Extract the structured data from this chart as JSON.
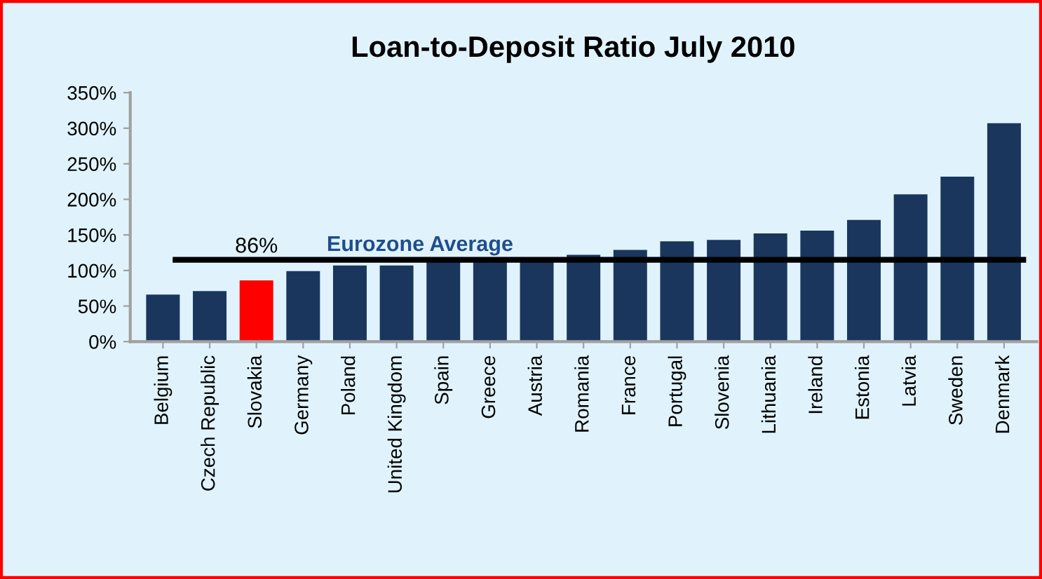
{
  "chart_data": {
    "type": "bar",
    "title": "Loan-to-Deposit Ratio July 2010",
    "categories": [
      "Belgium",
      "Czech Republic",
      "Slovakia",
      "Germany",
      "Poland",
      "United Kingdom",
      "Spain",
      "Greece",
      "Austria",
      "Romania",
      "France",
      "Portugal",
      "Slovenia",
      "Lithuania",
      "Ireland",
      "Estonia",
      "Latvia",
      "Sweden",
      "Denmark"
    ],
    "values": [
      66,
      71,
      86,
      99,
      107,
      107,
      113,
      115,
      116,
      122,
      129,
      141,
      143,
      152,
      156,
      171,
      207,
      232,
      307
    ],
    "value_labels": [
      null,
      null,
      "86%",
      null,
      null,
      null,
      null,
      null,
      null,
      null,
      null,
      null,
      null,
      null,
      null,
      null,
      null,
      null,
      null
    ],
    "colors": [
      "#1a365d",
      "#1a365d",
      "#ff0000",
      "#1a365d",
      "#1a365d",
      "#1a365d",
      "#1a365d",
      "#1a365d",
      "#1a365d",
      "#1a365d",
      "#1a365d",
      "#1a365d",
      "#1a365d",
      "#1a365d",
      "#1a365d",
      "#1a365d",
      "#1a365d",
      "#1a365d",
      "#1a365d"
    ],
    "ylim": [
      0,
      350
    ],
    "yticks": [
      {
        "value": 0,
        "label": "0%"
      },
      {
        "value": 50,
        "label": "50%"
      },
      {
        "value": 100,
        "label": "100%"
      },
      {
        "value": 150,
        "label": "150%"
      },
      {
        "value": 200,
        "label": "200%"
      },
      {
        "value": 250,
        "label": "250%"
      },
      {
        "value": 300,
        "label": "300%"
      },
      {
        "value": 350,
        "label": "350%"
      }
    ],
    "ref_lines": [
      {
        "axis": "y",
        "value": 115,
        "label": "Eurozone Average",
        "color": "#000000"
      }
    ],
    "grid": false,
    "legend": false
  }
}
